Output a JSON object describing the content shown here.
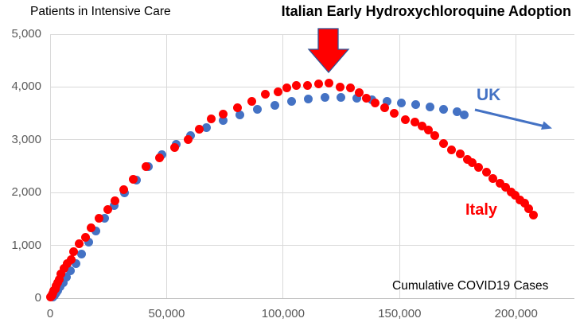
{
  "labels": {
    "partial_left_glyph": "0"
  },
  "colors": {
    "italy_red": "#FF0000",
    "uk_blue": "#4472C4",
    "tick_text": "#595959",
    "gridline": "#D9D9D9",
    "axis_line": "#BFBFBF",
    "arrow_outline": "#2F5496",
    "title_text": "#000000"
  },
  "chart_data": {
    "type": "scatter",
    "title": "Italian Early Hydroxychloroquine Adoption",
    "ylabel": "Patients in Intensive Care",
    "xlabel": "Cumulative COVID19 Cases",
    "xlim": [
      0,
      225000
    ],
    "ylim": [
      0,
      5000
    ],
    "grid": true,
    "x_ticks": [
      0,
      50000,
      100000,
      150000,
      200000
    ],
    "x_tick_labels": [
      "0",
      "50,000",
      "100,000",
      "150,000",
      "200,000"
    ],
    "y_ticks": [
      0,
      1000,
      2000,
      3000,
      4000,
      5000
    ],
    "y_tick_labels": [
      "0",
      "1,000",
      "2,000",
      "3,000",
      "4,000",
      "5,000"
    ],
    "legend_position": "labels-near-series",
    "annotations": [
      {
        "name": "red-down-arrow",
        "meaning": "points at Italy peak",
        "x": 119500,
        "y": 4300
      },
      {
        "name": "uk-trend-arrow",
        "meaning": "UK trajectory continuing",
        "from_x": 183000,
        "to_x": 215000
      }
    ],
    "series": [
      {
        "name": "UK",
        "color": "#4472C4",
        "points": [
          [
            1300,
            25
          ],
          [
            1800,
            55
          ],
          [
            2400,
            95
          ],
          [
            3200,
            150
          ],
          [
            4200,
            215
          ],
          [
            5500,
            300
          ],
          [
            7000,
            400
          ],
          [
            8800,
            520
          ],
          [
            11000,
            660
          ],
          [
            13500,
            830
          ],
          [
            16400,
            1060
          ],
          [
            19700,
            1280
          ],
          [
            23400,
            1520
          ],
          [
            27500,
            1760
          ],
          [
            32000,
            1990
          ],
          [
            36900,
            2240
          ],
          [
            42200,
            2500
          ],
          [
            47900,
            2720
          ],
          [
            54000,
            2910
          ],
          [
            60400,
            3080
          ],
          [
            67100,
            3230
          ],
          [
            74100,
            3360
          ],
          [
            81400,
            3470
          ],
          [
            88900,
            3570
          ],
          [
            96300,
            3655
          ],
          [
            103600,
            3720
          ],
          [
            110800,
            3775
          ],
          [
            117900,
            3805
          ],
          [
            124800,
            3810
          ],
          [
            131500,
            3795
          ],
          [
            138100,
            3765
          ],
          [
            144600,
            3730
          ],
          [
            150900,
            3695
          ],
          [
            157000,
            3660
          ],
          [
            163000,
            3620
          ],
          [
            168900,
            3575
          ],
          [
            174600,
            3525
          ],
          [
            177800,
            3470
          ]
        ]
      },
      {
        "name": "Italy",
        "color": "#FF0000",
        "points": [
          [
            300,
            27
          ],
          [
            700,
            56
          ],
          [
            900,
            64
          ],
          [
            1100,
            105
          ],
          [
            1700,
            140
          ],
          [
            2050,
            166
          ],
          [
            2500,
            229
          ],
          [
            3100,
            295
          ],
          [
            3900,
            351
          ],
          [
            4650,
            462
          ],
          [
            5900,
            567
          ],
          [
            7400,
            650
          ],
          [
            9200,
            733
          ],
          [
            10150,
            877
          ],
          [
            12460,
            1028
          ],
          [
            15100,
            1153
          ],
          [
            17660,
            1328
          ],
          [
            21160,
            1518
          ],
          [
            24750,
            1672
          ],
          [
            27980,
            1851
          ],
          [
            31500,
            2060
          ],
          [
            35700,
            2257
          ],
          [
            41000,
            2498
          ],
          [
            47000,
            2655
          ],
          [
            53600,
            2857
          ],
          [
            59100,
            3009
          ],
          [
            63900,
            3204
          ],
          [
            69200,
            3396
          ],
          [
            74400,
            3489
          ],
          [
            80500,
            3612
          ],
          [
            86500,
            3732
          ],
          [
            92500,
            3856
          ],
          [
            97700,
            3906
          ],
          [
            101700,
            3981
          ],
          [
            105800,
            4023
          ],
          [
            110600,
            4035
          ],
          [
            115200,
            4053
          ],
          [
            119800,
            4068
          ],
          [
            124600,
            3994
          ],
          [
            128900,
            3977
          ],
          [
            132500,
            3898
          ],
          [
            135600,
            3792
          ],
          [
            139400,
            3693
          ],
          [
            143600,
            3605
          ],
          [
            147600,
            3497
          ],
          [
            152300,
            3381
          ],
          [
            156400,
            3343
          ],
          [
            159500,
            3260
          ],
          [
            162500,
            3186
          ],
          [
            165200,
            3079
          ],
          [
            168900,
            2936
          ],
          [
            172400,
            2812
          ],
          [
            175900,
            2733
          ],
          [
            179000,
            2635
          ],
          [
            181200,
            2573
          ],
          [
            184000,
            2471
          ],
          [
            187300,
            2384
          ],
          [
            190000,
            2267
          ],
          [
            193000,
            2173
          ],
          [
            195400,
            2102
          ],
          [
            197700,
            2009
          ],
          [
            199400,
            1956
          ],
          [
            201500,
            1863
          ],
          [
            203600,
            1795
          ],
          [
            205500,
            1694
          ],
          [
            207400,
            1578
          ]
        ]
      }
    ]
  }
}
